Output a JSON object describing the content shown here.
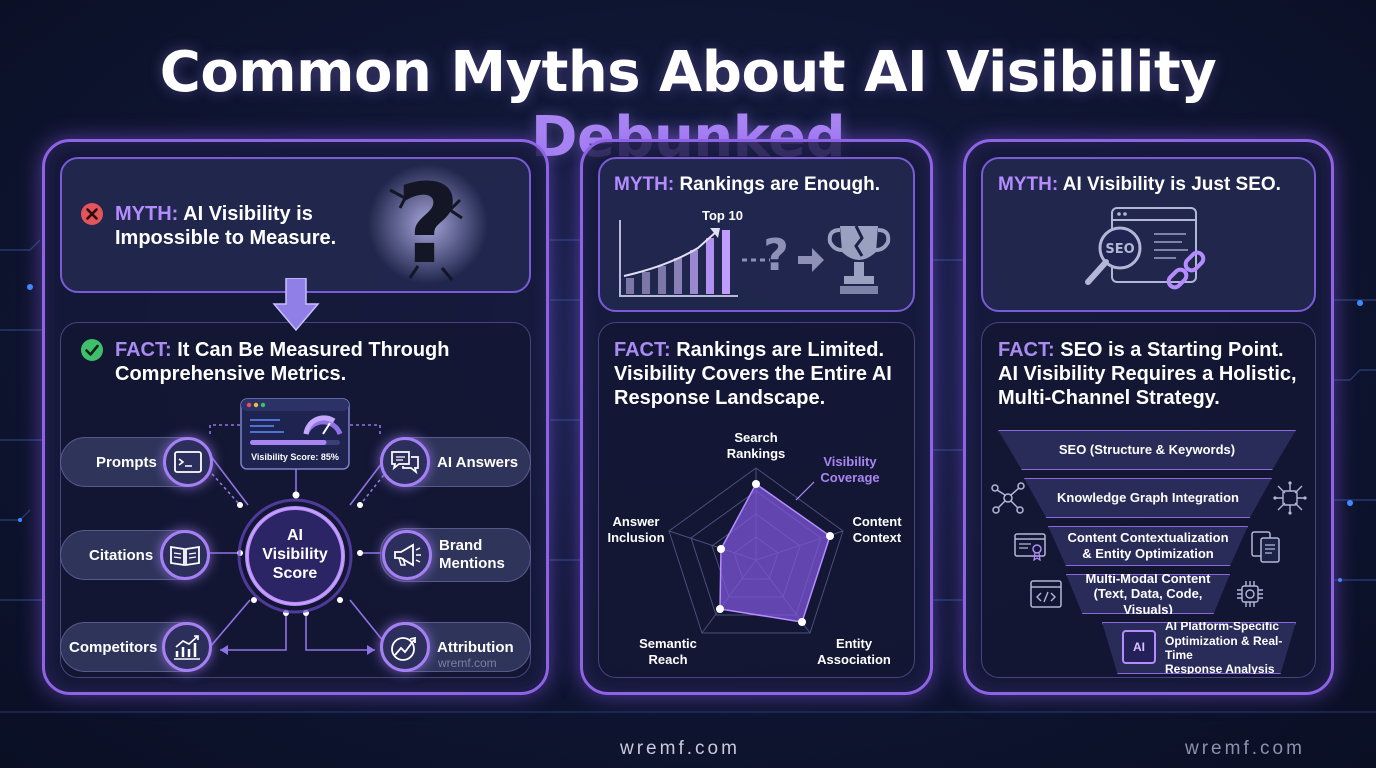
{
  "title": {
    "main": "Common Myths About AI Visibility",
    "accent": "Debunked"
  },
  "colors": {
    "accent": "#a985f3",
    "panel_border": "#8f63e6",
    "myth_x": "#e2555a",
    "fact_check": "#3fbf6b"
  },
  "panel1": {
    "myth_label": "MYTH:",
    "myth_text_l1": "AI Visibility is",
    "myth_text_l2": "Impossible to Measure.",
    "fact_label": "FACT:",
    "fact_text_l1": "It Can Be Measured Through",
    "fact_text_l2": "Comprehensive Metrics.",
    "dashboard_caption": "Visibility Score: 85%",
    "dashboard_score": 85,
    "center_l1": "AI",
    "center_l2": "Visibility",
    "center_l3": "Score",
    "metrics": {
      "prompts": "Prompts",
      "citations": "Citations",
      "competitors": "Competitors",
      "ai_answers": "AI Answers",
      "brand_l1": "Brand",
      "brand_l2": "Mentions",
      "attribution": "Attribution"
    },
    "watermark": "wremf.com"
  },
  "panel2": {
    "myth_label": "MYTH:",
    "myth_text": "Rankings are Enough.",
    "top10": "Top 10",
    "fact_label": "FACT:",
    "fact_text_l1": "Rankings are Limited.",
    "fact_text_l2": "Visibility Covers the Entire AI",
    "fact_text_l3": "Response Landscape.",
    "radar": {
      "top_l1": "Search",
      "top_l2": "Rankings",
      "coverage_l1": "Visibility",
      "coverage_l2": "Coverage",
      "right_l1": "Content",
      "right_l2": "Context",
      "br_l1": "Entity",
      "br_l2": "Association",
      "bl_l1": "Semantic",
      "bl_l2": "Reach",
      "left_l1": "Answer",
      "left_l2": "Inclusion"
    }
  },
  "panel3": {
    "myth_label": "MYTH:",
    "myth_text": "AI Visibility is Just SEO.",
    "seo_badge": "SEO",
    "fact_label": "FACT:",
    "fact_text_l1": "SEO is a Starting Point.",
    "fact_text_l2": "AI Visibility Requires a Holistic,",
    "fact_text_l3": "Multi-Channel Strategy.",
    "levels": {
      "l1": "SEO (Structure & Keywords)",
      "l2": "Knowledge Graph Integration",
      "l3a": "Content Contextualization",
      "l3b": "& Entity Optimization",
      "l4a": "Multi-Modal Content",
      "l4b": "(Text, Data, Code, Visuals)",
      "l5a": "AI Platform-Specific",
      "l5b": "Optimization & Real-Time",
      "l5c": "Response Analysis"
    },
    "ai_chip": "AI"
  },
  "footer": {
    "center": "wremf.com",
    "right": "wremf.com"
  }
}
